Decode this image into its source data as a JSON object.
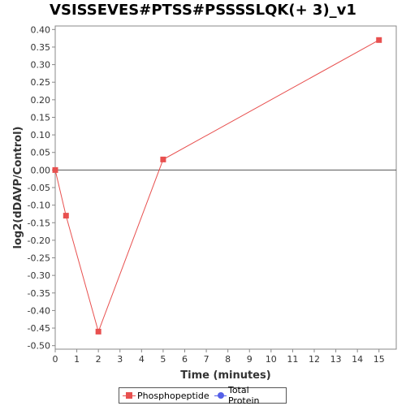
{
  "chart_data": {
    "type": "line",
    "title": "VSISSEVES#PTSS#PSSSSLQK(+ 3)_v1",
    "xlabel": "Time (minutes)",
    "ylabel": "log2(dDAVP/Control)",
    "xlim": [
      0,
      15.8
    ],
    "ylim": [
      -0.51,
      0.41
    ],
    "x_ticks": [
      0,
      1,
      2,
      3,
      4,
      5,
      6,
      7,
      8,
      9,
      10,
      11,
      12,
      13,
      14,
      15
    ],
    "y_ticks": [
      0.4,
      0.35,
      0.3,
      0.25,
      0.2,
      0.15,
      0.1,
      0.05,
      0.0,
      -0.05,
      -0.1,
      -0.15,
      -0.2,
      -0.25,
      -0.3,
      -0.35,
      -0.4,
      -0.45,
      -0.5
    ],
    "y_tick_labels": [
      "0.40",
      "0.35",
      "0.30",
      "0.25",
      "0.20",
      "0.15",
      "0.10",
      "0.05",
      "0.00",
      "-0.05",
      "-0.10",
      "-0.15",
      "-0.20",
      "-0.25",
      "-0.30",
      "-0.35",
      "-0.40",
      "-0.45",
      "-0.50"
    ],
    "grid": false,
    "zero_line": true,
    "legend_position": "bottom",
    "series": [
      {
        "name": "Phosphopeptide",
        "color": "#e8504f",
        "marker": "square",
        "x": [
          0,
          0.5,
          2,
          5,
          15
        ],
        "y": [
          0.0,
          -0.13,
          -0.46,
          0.03,
          0.37
        ]
      },
      {
        "name": "Total Protein",
        "color": "#5560e8",
        "marker": "circle",
        "x": [],
        "y": []
      }
    ]
  }
}
